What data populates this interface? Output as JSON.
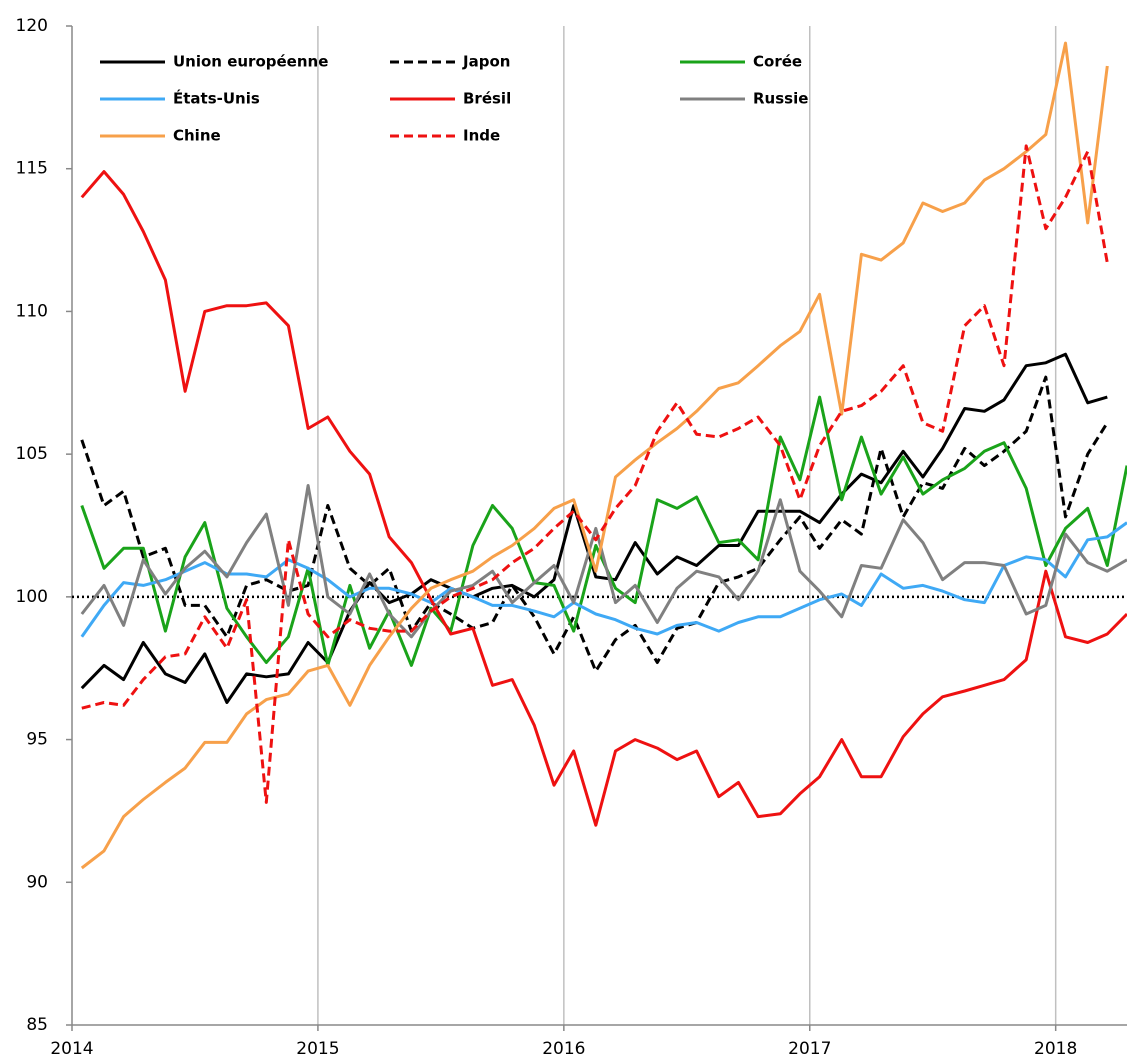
{
  "chart_data": {
    "type": "line",
    "x": [
      2014.04,
      2014.13,
      2014.21,
      2014.29,
      2014.38,
      2014.46,
      2014.54,
      2014.63,
      2014.71,
      2014.79,
      2014.88,
      2014.96,
      2015.04,
      2015.13,
      2015.21,
      2015.29,
      2015.38,
      2015.46,
      2015.54,
      2015.63,
      2015.71,
      2015.79,
      2015.88,
      2015.96,
      2016.04,
      2016.13,
      2016.21,
      2016.29,
      2016.38,
      2016.46,
      2016.54,
      2016.63,
      2016.71,
      2016.79,
      2016.88,
      2016.96,
      2017.04,
      2017.13,
      2017.21,
      2017.29,
      2017.38,
      2017.46,
      2017.54,
      2017.63,
      2017.71,
      2017.79,
      2017.88,
      2017.96,
      2018.04,
      2018.13,
      2018.21,
      2018.29
    ],
    "xlim": [
      2014,
      2018.29
    ],
    "xticks": [
      2014,
      2015,
      2016,
      2017,
      2018
    ],
    "ylim": [
      85,
      120
    ],
    "yticks": [
      85,
      90,
      95,
      100,
      105,
      110,
      115,
      120
    ],
    "reference_line": 100,
    "grid": "x",
    "series": [
      {
        "name": "Union européenne",
        "color": "#000000",
        "dash": false,
        "values": [
          96.8,
          97.6,
          97.1,
          98.4,
          97.3,
          97.0,
          98.0,
          96.3,
          97.3,
          97.2,
          97.3,
          98.4,
          97.7,
          99.5,
          100.5,
          99.8,
          100.1,
          100.6,
          100.3,
          100.0,
          100.3,
          100.4,
          100.0,
          100.6,
          103.2,
          100.7,
          100.6,
          101.9,
          100.8,
          101.4,
          101.1,
          101.8,
          101.8,
          103.0,
          103.0,
          103.0,
          102.6,
          103.6,
          104.3,
          104.0,
          105.1,
          104.2,
          105.2,
          106.6,
          106.5,
          106.9,
          108.1,
          108.2,
          108.5,
          106.8,
          107.0,
          null
        ]
      },
      {
        "name": "Japon",
        "color": "#000000",
        "dash": true,
        "values": [
          105.5,
          103.2,
          103.7,
          101.4,
          101.7,
          99.7,
          99.7,
          98.6,
          100.4,
          100.6,
          100.2,
          100.4,
          103.2,
          101.0,
          100.4,
          101.0,
          98.8,
          99.8,
          99.4,
          98.9,
          99.1,
          100.4,
          99.3,
          98.0,
          99.3,
          97.4,
          98.5,
          99.0,
          97.7,
          98.9,
          99.1,
          100.5,
          100.7,
          101.0,
          102.0,
          102.8,
          101.7,
          102.7,
          102.2,
          105.2,
          102.8,
          104.0,
          103.8,
          105.2,
          104.6,
          105.1,
          105.8,
          107.7,
          102.8,
          105.0,
          106.1,
          null
        ]
      },
      {
        "name": "Corée",
        "color": "#1aa31a",
        "dash": false,
        "values": [
          103.2,
          101.0,
          101.7,
          101.7,
          98.8,
          101.4,
          102.6,
          99.6,
          98.6,
          97.7,
          98.6,
          101.0,
          97.6,
          100.4,
          98.2,
          99.5,
          97.6,
          99.6,
          98.8,
          101.8,
          103.2,
          102.4,
          100.5,
          100.4,
          98.8,
          101.8,
          100.3,
          99.8,
          103.4,
          103.1,
          103.5,
          101.9,
          102.0,
          101.3,
          105.6,
          104.1,
          107.0,
          103.4,
          105.6,
          103.6,
          104.9,
          103.6,
          104.1,
          104.5,
          105.1,
          105.4,
          103.8,
          101.1,
          102.4,
          103.1,
          101.1,
          104.6
        ]
      },
      {
        "name": "États-Unis",
        "color": "#3fa9f5",
        "dash": false,
        "values": [
          98.6,
          99.7,
          100.5,
          100.4,
          100.6,
          100.9,
          101.2,
          100.8,
          100.8,
          100.7,
          101.3,
          101.0,
          100.6,
          100.0,
          100.3,
          100.3,
          100.1,
          99.8,
          100.3,
          100.0,
          99.7,
          99.7,
          99.5,
          99.3,
          99.8,
          99.4,
          99.2,
          98.9,
          98.7,
          99.0,
          99.1,
          98.8,
          99.1,
          99.3,
          99.3,
          99.6,
          99.9,
          100.1,
          99.7,
          100.8,
          100.3,
          100.4,
          100.2,
          99.9,
          99.8,
          101.1,
          101.4,
          101.3,
          100.7,
          102.0,
          102.1,
          102.6
        ]
      },
      {
        "name": "Brésil",
        "color": "#ee1111",
        "dash": false,
        "values": [
          114.0,
          114.9,
          114.1,
          112.8,
          111.1,
          107.2,
          110.0,
          110.2,
          110.2,
          110.3,
          109.5,
          105.9,
          106.3,
          105.1,
          104.3,
          102.1,
          101.2,
          99.9,
          98.7,
          98.9,
          96.9,
          97.1,
          95.5,
          93.4,
          94.6,
          92.0,
          94.6,
          95.0,
          94.7,
          94.3,
          94.6,
          93.0,
          93.5,
          92.3,
          92.4,
          93.1,
          93.7,
          95.0,
          93.7,
          93.7,
          95.1,
          95.9,
          96.5,
          96.7,
          96.9,
          97.1,
          97.8,
          100.9,
          98.6,
          98.4,
          98.7,
          99.4
        ]
      },
      {
        "name": "Russie",
        "color": "#808080",
        "dash": false,
        "values": [
          99.4,
          100.4,
          99.0,
          101.3,
          100.1,
          101.0,
          101.6,
          100.7,
          101.9,
          102.9,
          99.7,
          103.9,
          100.0,
          99.4,
          100.8,
          99.4,
          98.6,
          99.5,
          100.2,
          100.4,
          100.9,
          99.8,
          100.5,
          101.1,
          99.8,
          102.4,
          99.8,
          100.4,
          99.1,
          100.3,
          100.9,
          100.7,
          99.9,
          100.9,
          103.4,
          100.9,
          100.2,
          99.3,
          101.1,
          101.0,
          102.7,
          101.9,
          100.6,
          101.2,
          101.2,
          101.1,
          99.4,
          99.7,
          102.2,
          101.2,
          100.9,
          101.3
        ]
      },
      {
        "name": "Chine",
        "color": "#f7a04a",
        "dash": false,
        "values": [
          90.5,
          91.1,
          92.3,
          92.9,
          93.5,
          94.0,
          94.9,
          94.9,
          95.9,
          96.4,
          96.6,
          97.4,
          97.6,
          96.2,
          97.6,
          98.6,
          99.6,
          100.3,
          100.6,
          100.9,
          101.4,
          101.8,
          102.4,
          103.1,
          103.4,
          100.9,
          104.2,
          104.8,
          105.4,
          105.9,
          106.5,
          107.3,
          107.5,
          108.1,
          108.8,
          109.3,
          110.6,
          106.4,
          112.0,
          111.8,
          112.4,
          113.8,
          113.5,
          113.8,
          114.6,
          115.0,
          115.6,
          116.2,
          119.4,
          113.1,
          118.6,
          null
        ]
      },
      {
        "name": "Inde",
        "color": "#ee1111",
        "dash": true,
        "values": [
          96.1,
          96.3,
          96.2,
          97.1,
          97.9,
          98.0,
          99.3,
          98.2,
          99.9,
          92.8,
          102.0,
          99.4,
          98.6,
          99.2,
          98.9,
          98.8,
          98.8,
          99.5,
          100.0,
          100.3,
          100.6,
          101.2,
          101.7,
          102.4,
          103.0,
          102.0,
          103.1,
          103.9,
          105.8,
          106.8,
          105.7,
          105.6,
          105.9,
          106.3,
          105.3,
          103.4,
          105.3,
          106.5,
          106.7,
          107.2,
          108.1,
          106.1,
          105.8,
          109.5,
          110.2,
          108.1,
          115.8,
          112.9,
          114.0,
          115.6,
          111.7,
          null
        ]
      }
    ]
  }
}
